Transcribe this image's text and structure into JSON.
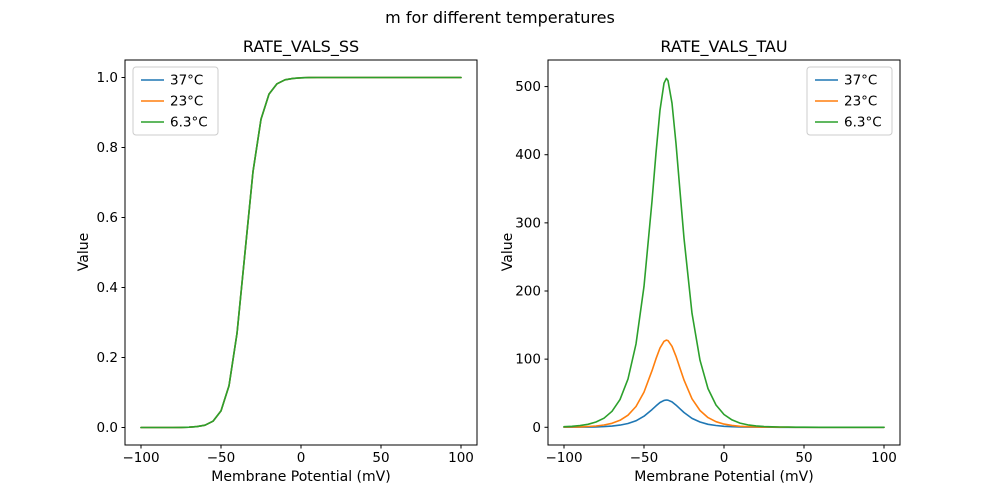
{
  "suptitle": "m for different temperatures",
  "colors": {
    "background": "#ffffff",
    "axes_edge": "#000000",
    "legend_edge": "#cccccc",
    "series_blue": "#1f77b4",
    "series_orange": "#ff7f0e",
    "series_green": "#2ca02c"
  },
  "chart_data": [
    {
      "type": "line",
      "title": "RATE_VALS_SS",
      "xlabel": "Membrane Potential (mV)",
      "ylabel": "Value",
      "xlim": [
        -110,
        110
      ],
      "ylim": [
        -0.05,
        1.05
      ],
      "xticks": [
        -100,
        -50,
        0,
        50,
        100
      ],
      "xtick_labels": [
        "−100",
        "−50",
        "0",
        "50",
        "100"
      ],
      "yticks": [
        0.0,
        0.2,
        0.4,
        0.6,
        0.8,
        1.0
      ],
      "ytick_labels": [
        "0.0",
        "0.2",
        "0.4",
        "0.6",
        "0.8",
        "1.0"
      ],
      "legend_position": "upper left",
      "note": "sigmoid steady-state curve; all three temperature series coincide exactly so only the topmost (6.3°C, green) is visible",
      "x": [
        -100,
        -95,
        -90,
        -85,
        -80,
        -75,
        -70,
        -65,
        -60,
        -55,
        -50,
        -45,
        -40,
        -35,
        -30,
        -25,
        -20,
        -15,
        -10,
        -5,
        0,
        5,
        10,
        15,
        20,
        25,
        30,
        35,
        40,
        45,
        50,
        55,
        60,
        65,
        70,
        75,
        80,
        85,
        90,
        95,
        100
      ],
      "shared_values": [
        0,
        0,
        0,
        0,
        0.0001,
        0.0003,
        0.0009,
        0.0025,
        0.0067,
        0.018,
        0.0474,
        0.1192,
        0.2689,
        0.5,
        0.7311,
        0.8808,
        0.9526,
        0.982,
        0.9933,
        0.9975,
        0.9991,
        0.9997,
        0.9999,
        1,
        1,
        1,
        1,
        1,
        1,
        1,
        1,
        1,
        1,
        1,
        1,
        1,
        1,
        1,
        1,
        1,
        1
      ],
      "series": [
        {
          "name": "37°C",
          "color": "#1f77b4"
        },
        {
          "name": "23°C",
          "color": "#ff7f0e"
        },
        {
          "name": "6.3°C",
          "color": "#2ca02c"
        }
      ]
    },
    {
      "type": "line",
      "title": "RATE_VALS_TAU",
      "xlabel": "Membrane Potential (mV)",
      "ylabel": "Value",
      "xlim": [
        -110,
        110
      ],
      "ylim": [
        -26,
        539
      ],
      "xticks": [
        -100,
        -50,
        0,
        50,
        100
      ],
      "xtick_labels": [
        "−100",
        "−50",
        "0",
        "50",
        "100"
      ],
      "yticks": [
        0,
        100,
        200,
        300,
        400,
        500
      ],
      "ytick_labels": [
        "0",
        "100",
        "200",
        "300",
        "400",
        "500"
      ],
      "legend_position": "upper right",
      "note": "bell-shaped time-constant curves peaking near -36 mV; peak values approx 40 (37°C), 128 (23°C), 512 (6.3°C)",
      "x": [
        -100,
        -95,
        -90,
        -85,
        -80,
        -75,
        -70,
        -65,
        -60,
        -55,
        -50,
        -45,
        -42.5,
        -40,
        -37.5,
        -36,
        -35,
        -32.5,
        -30,
        -27.5,
        -25,
        -20,
        -15,
        -10,
        -5,
        0,
        5,
        10,
        15,
        20,
        25,
        30,
        35,
        40,
        45,
        50,
        60,
        70,
        80,
        90,
        100
      ],
      "series": [
        {
          "name": "37°C",
          "color": "#1f77b4",
          "values": [
            0.1,
            0.1,
            0.2,
            0.3,
            0.6,
            1,
            1.8,
            3.2,
            5.5,
            9.5,
            16.2,
            25.9,
            31.4,
            36.4,
            39.4,
            40,
            39.8,
            37.2,
            32.5,
            27.1,
            21.7,
            13.1,
            7.7,
            4.4,
            2.6,
            1.5,
            0.8,
            0.5,
            0.3,
            0.2,
            0.1,
            0.1,
            0,
            0,
            0,
            0,
            0,
            0,
            0,
            0,
            0
          ]
        },
        {
          "name": "23°C",
          "color": "#ff7f0e",
          "values": [
            0.2,
            0.4,
            0.6,
            1.1,
            1.9,
            3.4,
            5.9,
            10.2,
            17.7,
            30.5,
            51.7,
            83,
            100.6,
            116.4,
            126.2,
            128,
            127.2,
            118.9,
            104.1,
            86.6,
            69.4,
            41.8,
            24.6,
            14.2,
            8.2,
            4.7,
            2.7,
            1.5,
            0.9,
            0.5,
            0.3,
            0.2,
            0.1,
            0.1,
            0,
            0,
            0,
            0,
            0,
            0,
            0
          ]
        },
        {
          "name": "6.3°C",
          "color": "#2ca02c",
          "values": [
            0.8,
            1.5,
            2.5,
            4.4,
            7.7,
            13.4,
            23.4,
            40.6,
            70.8,
            122.2,
            206.8,
            331.8,
            402.5,
            465.5,
            505,
            512,
            508.8,
            475.6,
            416.3,
            346.4,
            277.5,
            167.3,
            98.5,
            56.8,
            32.7,
            18.7,
            10.8,
            6.2,
            3.5,
            2,
            1.2,
            0.7,
            0.4,
            0.2,
            0.1,
            0.1,
            0,
            0,
            0,
            0,
            0
          ]
        }
      ]
    }
  ]
}
